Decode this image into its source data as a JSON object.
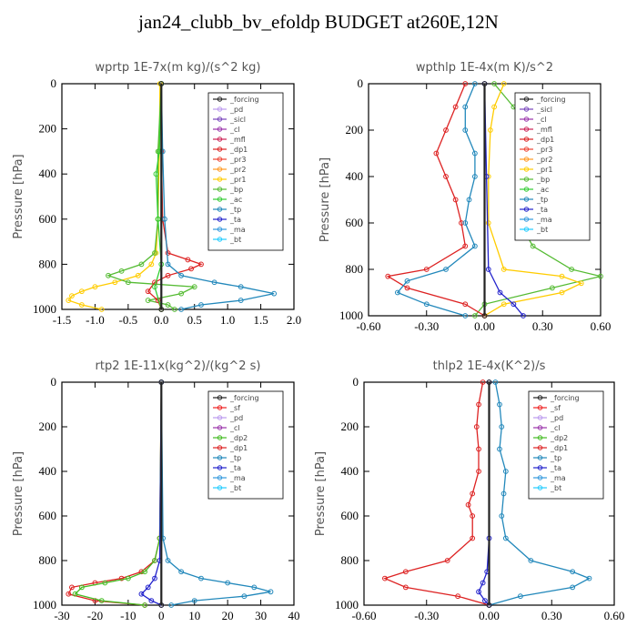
{
  "title": "jan24_clubb_bv_efoldp  BUDGET at260E,12N",
  "colors": {
    "_forcing": "#222222",
    "_pd": "#bb99ee",
    "_sicl": "#7744bb",
    "_cl": "#9933aa",
    "_mfl": "#cc2255",
    "_dp1": "#dd2222",
    "_pr3": "#ee4433",
    "_pr2": "#ff9922",
    "_pr1": "#ffcc00",
    "_bp": "#55bb33",
    "_ac": "#33cc33",
    "_tp": "#2288bb",
    "_ta": "#2222cc",
    "_ma": "#3399dd",
    "_bt": "#22ccff",
    "_sf": "#ee2222",
    "_dp2": "#44bb22"
  },
  "chart_data": [
    {
      "type": "line",
      "title": "wprtp  1E-7x(m kg)/(s^2 kg)",
      "ylabel": "Pressure [hPa]",
      "xlim": [
        -1.5,
        2.0
      ],
      "ylim": [
        1000,
        0
      ],
      "xticks": [
        "-1.5",
        "-1.0",
        "-0.5",
        "0.0",
        "0.5",
        "1.0",
        "1.5",
        "2.0"
      ],
      "yticks": [
        "0",
        "200",
        "400",
        "600",
        "800",
        "1000"
      ],
      "legend": [
        "_forcing",
        "_pd",
        "_sicl",
        "_cl",
        "_mfl",
        "_dp1",
        "_pr3",
        "_pr2",
        "_pr1",
        "_bp",
        "_ac",
        "_tp",
        "_ta",
        "_ma",
        "_bt"
      ],
      "legend_position": "top-right",
      "series": [
        {
          "name": "_pr1",
          "y": [
            0,
            300,
            600,
            750,
            800,
            850,
            880,
            900,
            920,
            940,
            960,
            980,
            1000
          ],
          "x": [
            -0.02,
            -0.03,
            -0.05,
            -0.08,
            -0.15,
            -0.35,
            -0.7,
            -1.0,
            -1.2,
            -1.35,
            -1.4,
            -1.2,
            -0.9
          ]
        },
        {
          "name": "_bp",
          "y": [
            0,
            300,
            600,
            750,
            800,
            830,
            850,
            880,
            900,
            930,
            960,
            980,
            1000
          ],
          "x": [
            0.0,
            -0.05,
            -0.05,
            -0.1,
            -0.3,
            -0.6,
            -0.8,
            -0.5,
            0.5,
            0.3,
            -0.2,
            0.1,
            0.2
          ]
        },
        {
          "name": "_dp1",
          "y": [
            0,
            300,
            600,
            750,
            780,
            800,
            820,
            850,
            880,
            920,
            960,
            1000
          ],
          "x": [
            0.0,
            0.0,
            0.02,
            0.1,
            0.4,
            0.6,
            0.45,
            0.1,
            -0.1,
            -0.2,
            -0.05,
            0.0
          ]
        },
        {
          "name": "_tp",
          "y": [
            0,
            300,
            600,
            800,
            850,
            880,
            900,
            930,
            960,
            980,
            1000
          ],
          "x": [
            0.0,
            0.02,
            0.05,
            0.1,
            0.3,
            0.8,
            1.2,
            1.7,
            1.2,
            0.6,
            0.3
          ]
        },
        {
          "name": "_ac",
          "y": [
            0,
            300,
            400,
            600,
            800,
            900,
            1000
          ],
          "x": [
            0.0,
            -0.03,
            -0.08,
            -0.05,
            0.0,
            -0.1,
            0.0
          ]
        },
        {
          "name": "_forcing",
          "y": [
            0,
            1000
          ],
          "x": [
            0.0,
            0.0
          ]
        }
      ]
    },
    {
      "type": "line",
      "title": "wpthlp  1E-4x(m K)/s^2",
      "ylabel": "Pressure [hPa]",
      "xlim": [
        -0.6,
        0.6
      ],
      "ylim": [
        1000,
        0
      ],
      "xticks": [
        "-0.60",
        "-0.30",
        "0.00",
        "0.30",
        "0.60"
      ],
      "yticks": [
        "0",
        "200",
        "400",
        "600",
        "800",
        "1000"
      ],
      "legend": [
        "_forcing",
        "_sicl",
        "_cl",
        "_mfl",
        "_dp1",
        "_pr3",
        "_pr2",
        "_pr1",
        "_bp",
        "_ac",
        "_tp",
        "_ta",
        "_ma",
        "_bt"
      ],
      "legend_position": "top-right",
      "series": [
        {
          "name": "_bp",
          "y": [
            0,
            100,
            200,
            300,
            400,
            500,
            600,
            700,
            800,
            830,
            880,
            950,
            1000
          ],
          "x": [
            0.05,
            0.15,
            0.25,
            0.25,
            0.22,
            0.2,
            0.18,
            0.25,
            0.45,
            0.6,
            0.35,
            0.0,
            -0.05
          ]
        },
        {
          "name": "_pr1",
          "y": [
            0,
            100,
            200,
            400,
            600,
            800,
            830,
            860,
            900,
            950,
            1000
          ],
          "x": [
            0.1,
            0.05,
            0.03,
            0.02,
            0.02,
            0.1,
            0.4,
            0.5,
            0.4,
            0.1,
            0.0
          ]
        },
        {
          "name": "_dp1",
          "y": [
            0,
            100,
            200,
            300,
            400,
            500,
            600,
            700,
            800,
            830,
            880,
            950,
            1000
          ],
          "x": [
            -0.1,
            -0.15,
            -0.2,
            -0.25,
            -0.2,
            -0.15,
            -0.12,
            -0.1,
            -0.3,
            -0.5,
            -0.4,
            -0.1,
            0.0
          ]
        },
        {
          "name": "_tp",
          "y": [
            0,
            100,
            200,
            300,
            400,
            500,
            600,
            700,
            800,
            850,
            900,
            950,
            1000
          ],
          "x": [
            -0.05,
            -0.1,
            -0.1,
            -0.05,
            -0.05,
            -0.08,
            -0.1,
            -0.05,
            -0.2,
            -0.4,
            -0.45,
            -0.3,
            -0.1
          ]
        },
        {
          "name": "_ta",
          "y": [
            0,
            400,
            800,
            900,
            950,
            1000
          ],
          "x": [
            0.0,
            0.01,
            0.02,
            0.08,
            0.15,
            0.2
          ]
        },
        {
          "name": "_forcing",
          "y": [
            0,
            1000
          ],
          "x": [
            0.0,
            0.0
          ]
        }
      ]
    },
    {
      "type": "line",
      "title": "rtp2  1E-11x(kg^2)/(kg^2 s)",
      "ylabel": "Pressure [hPa]",
      "xlim": [
        -30,
        40
      ],
      "ylim": [
        1000,
        0
      ],
      "xticks": [
        "-30",
        "-20",
        "-10",
        "0",
        "10",
        "20",
        "30",
        "40"
      ],
      "yticks": [
        "0",
        "200",
        "400",
        "600",
        "800",
        "1000"
      ],
      "legend": [
        "_forcing",
        "_sf",
        "_pd",
        "_cl",
        "_dp2",
        "_dp1",
        "_tp",
        "_ta",
        "_ma",
        "_bt"
      ],
      "legend_position": "top-right",
      "series": [
        {
          "name": "_dp1",
          "y": [
            0,
            700,
            800,
            850,
            880,
            900,
            920,
            950,
            980,
            1000
          ],
          "x": [
            0,
            -0.5,
            -2,
            -6,
            -12,
            -20,
            -27,
            -28,
            -20,
            -5
          ]
        },
        {
          "name": "_dp2",
          "y": [
            0,
            700,
            800,
            850,
            880,
            900,
            920,
            950,
            980,
            1000
          ],
          "x": [
            0,
            -0.5,
            -2,
            -5,
            -10,
            -17,
            -24,
            -26,
            -18,
            -5
          ]
        },
        {
          "name": "_tp",
          "y": [
            0,
            700,
            800,
            850,
            880,
            900,
            920,
            940,
            960,
            980,
            1000
          ],
          "x": [
            0,
            0.5,
            2,
            6,
            12,
            20,
            28,
            33,
            25,
            10,
            3
          ]
        },
        {
          "name": "_ta",
          "y": [
            0,
            800,
            880,
            920,
            950,
            980,
            1000
          ],
          "x": [
            0,
            -0.5,
            -2,
            -4,
            -6,
            -3,
            0
          ]
        },
        {
          "name": "_forcing",
          "y": [
            0,
            1000
          ],
          "x": [
            0,
            0
          ]
        }
      ]
    },
    {
      "type": "line",
      "title": "thlp2  1E-4x(K^2)/s",
      "ylabel": "Pressure [hPa]",
      "xlim": [
        -0.6,
        0.6
      ],
      "ylim": [
        1000,
        0
      ],
      "xticks": [
        "-0.60",
        "-0.30",
        "0.00",
        "0.30",
        "0.60"
      ],
      "yticks": [
        "0",
        "200",
        "400",
        "600",
        "800",
        "1000"
      ],
      "legend": [
        "_forcing",
        "_sf",
        "_pd",
        "_cl",
        "_dp2",
        "_dp1",
        "_tp",
        "_ta",
        "_ma",
        "_bt"
      ],
      "legend_position": "top-right",
      "series": [
        {
          "name": "_dp1",
          "y": [
            0,
            100,
            200,
            300,
            400,
            500,
            550,
            600,
            700,
            800,
            850,
            880,
            920,
            960,
            1000
          ],
          "x": [
            -0.03,
            -0.05,
            -0.06,
            -0.05,
            -0.05,
            -0.08,
            -0.1,
            -0.08,
            -0.08,
            -0.2,
            -0.4,
            -0.5,
            -0.4,
            -0.15,
            0.0
          ]
        },
        {
          "name": "_tp",
          "y": [
            0,
            100,
            200,
            300,
            400,
            500,
            600,
            700,
            800,
            850,
            880,
            920,
            960,
            1000
          ],
          "x": [
            0.03,
            0.05,
            0.06,
            0.05,
            0.08,
            0.07,
            0.06,
            0.08,
            0.2,
            0.4,
            0.48,
            0.4,
            0.15,
            0.0
          ]
        },
        {
          "name": "_ta",
          "y": [
            0,
            700,
            850,
            900,
            940,
            980,
            1000
          ],
          "x": [
            0.0,
            0.0,
            -0.01,
            -0.03,
            -0.05,
            -0.02,
            0.0
          ]
        },
        {
          "name": "_forcing",
          "y": [
            0,
            1000
          ],
          "x": [
            0.0,
            0.0
          ]
        }
      ]
    }
  ]
}
